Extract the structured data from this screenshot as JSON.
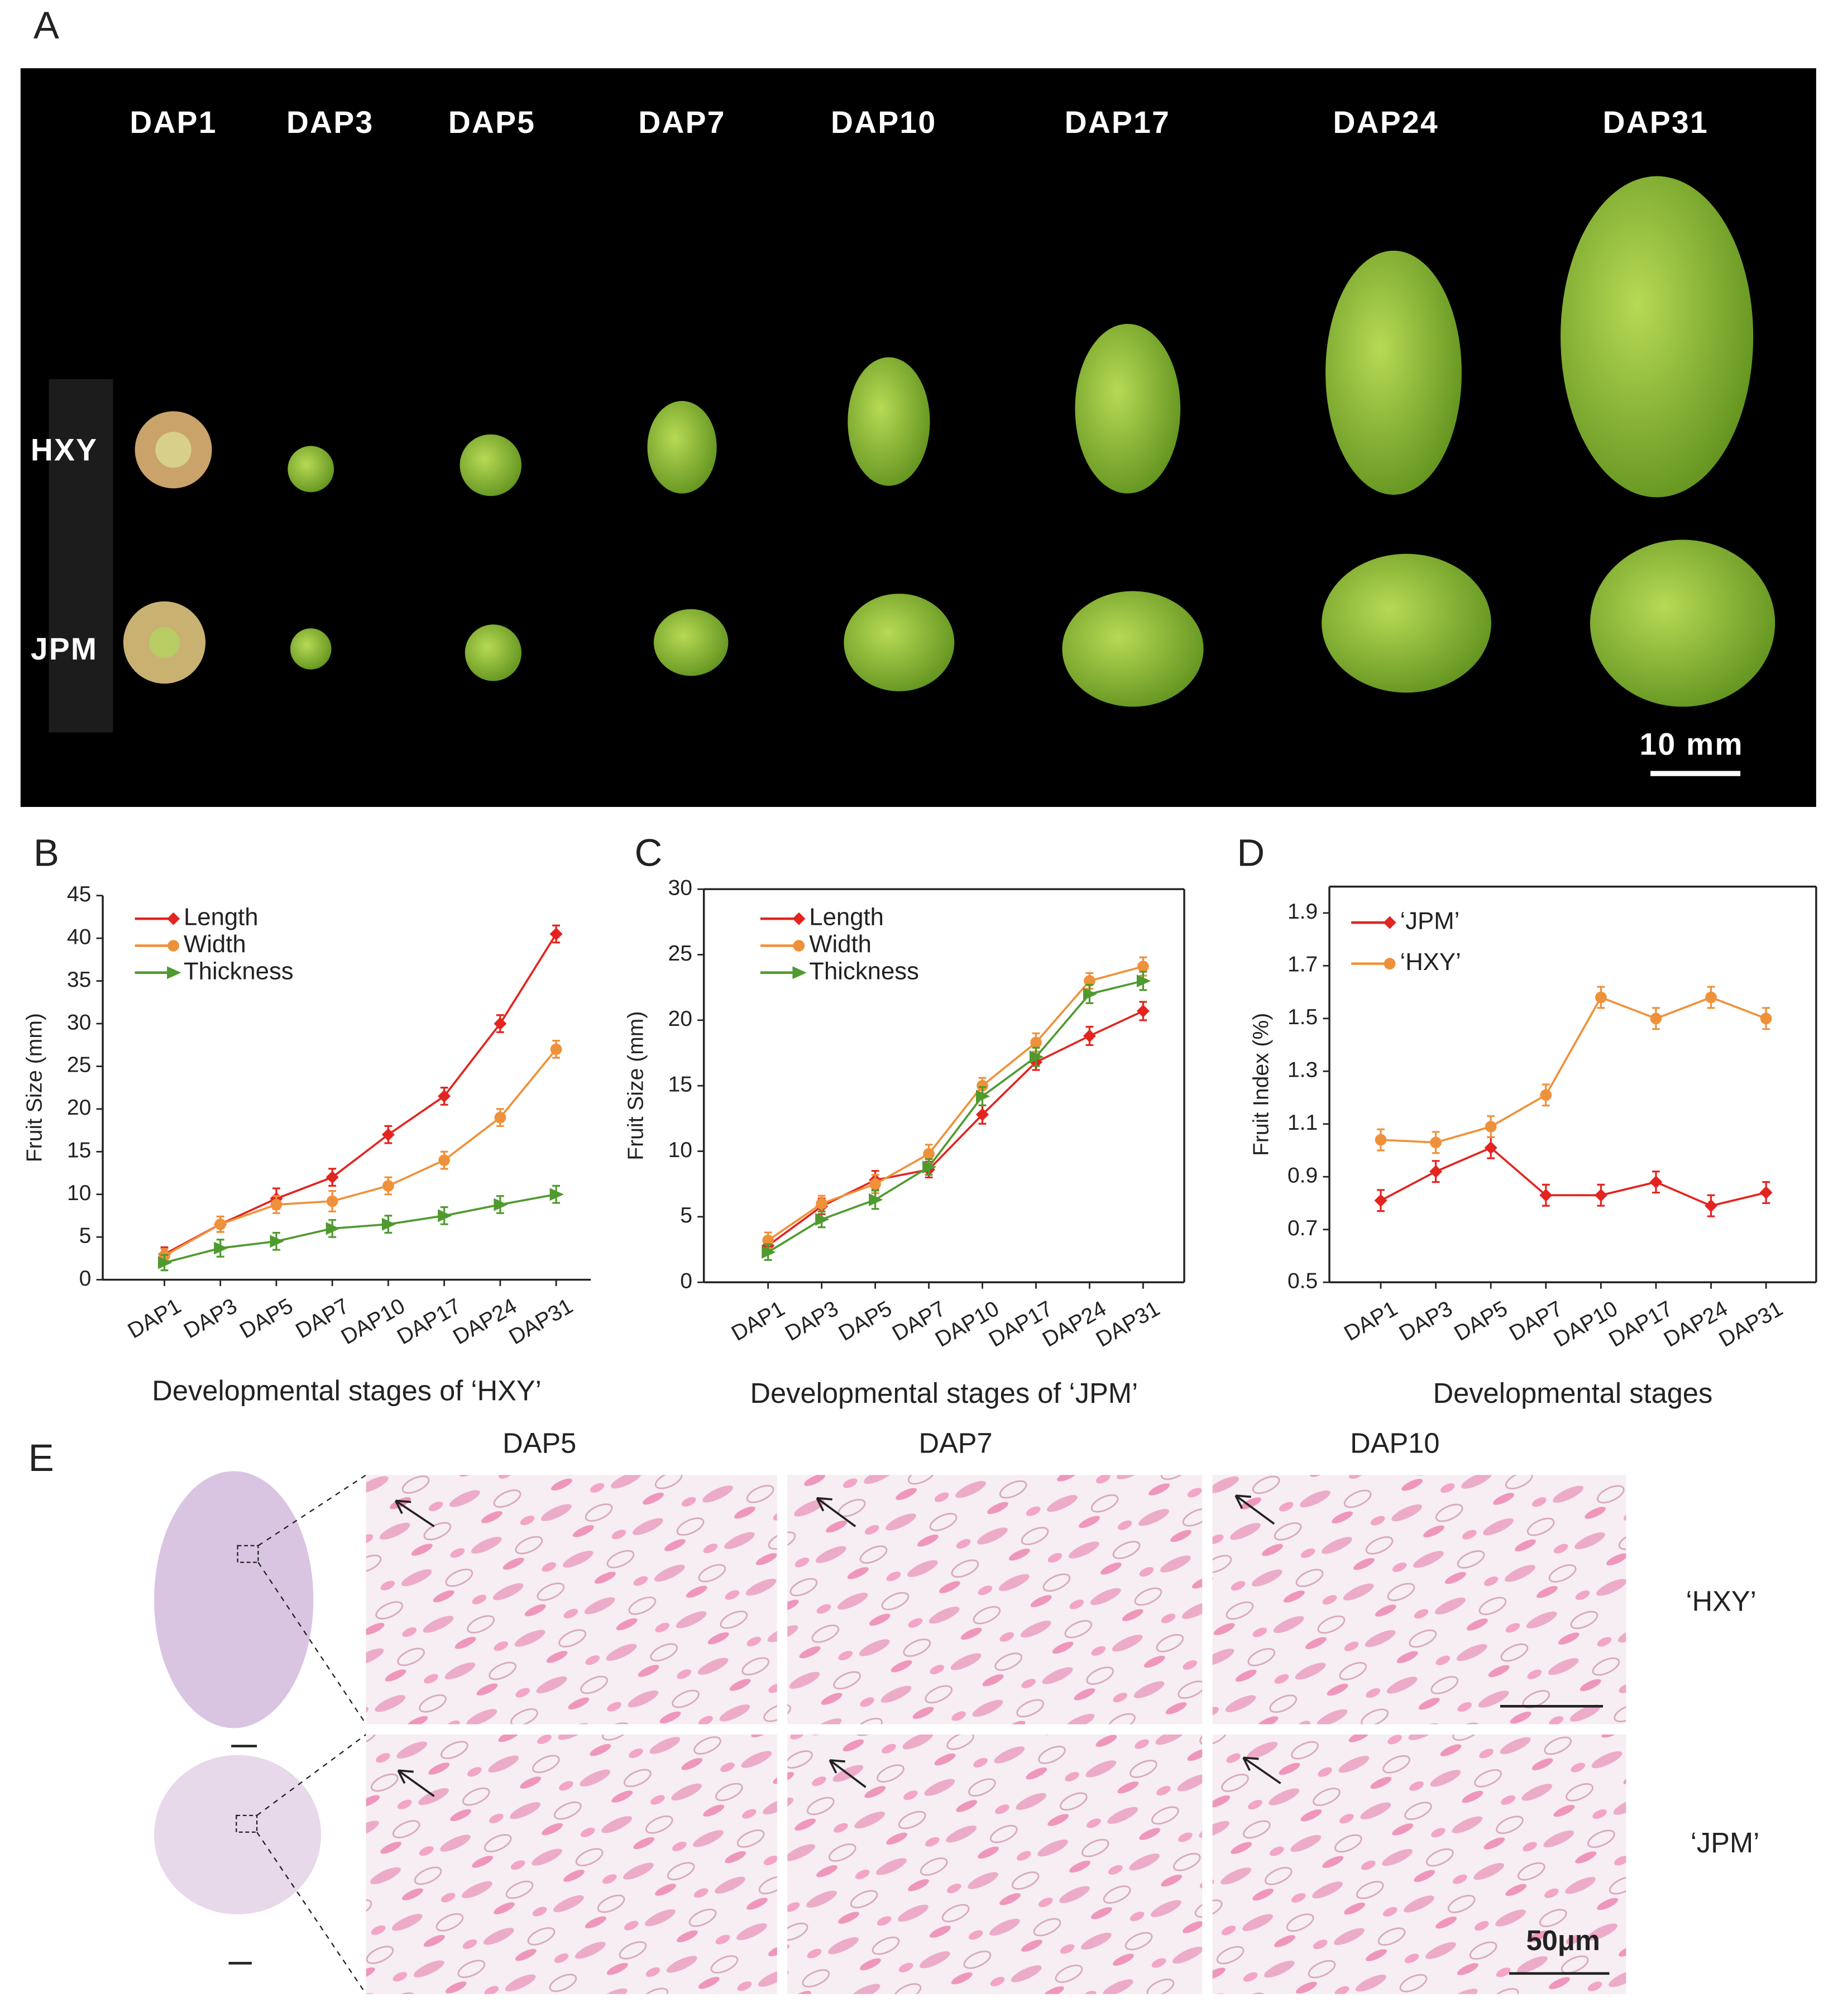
{
  "panel_labels": [
    "A",
    "B",
    "C",
    "D",
    "E"
  ],
  "panel_a": {
    "stages": [
      "DAP1",
      "DAP3",
      "DAP5",
      "DAP7",
      "DAP10",
      "DAP17",
      "DAP24",
      "DAP31"
    ],
    "rows": [
      "HXY",
      "JPM"
    ],
    "scale_bar": "10 mm"
  },
  "chart_data": [
    {
      "type": "line",
      "categories": [
        "DAP1",
        "DAP3",
        "DAP5",
        "DAP7",
        "DAP10",
        "DAP17",
        "DAP24",
        "DAP31"
      ],
      "series": [
        {
          "name": "Length",
          "color": "#e3241f",
          "marker": "diamond",
          "values": [
            3,
            6.5,
            9.5,
            12,
            17,
            21.5,
            30,
            40.5
          ],
          "errors": [
            0.8,
            0.9,
            1.2,
            1,
            1,
            1,
            1,
            1
          ]
        },
        {
          "name": "Width",
          "color": "#ef913a",
          "marker": "circle",
          "values": [
            2.8,
            6.5,
            8.8,
            9.2,
            11,
            14,
            19,
            27
          ],
          "errors": [
            0.8,
            0.9,
            1,
            1.2,
            1,
            1,
            1,
            1
          ]
        },
        {
          "name": "Thickness",
          "color": "#4f9a2f",
          "marker": "triangle",
          "values": [
            2,
            3.7,
            4.5,
            6,
            6.5,
            7.5,
            8.8,
            10
          ],
          "errors": [
            0.9,
            1,
            1,
            1,
            1,
            1,
            1,
            1
          ]
        }
      ],
      "ylim": [
        0,
        45
      ],
      "yticks": [
        0,
        5,
        10,
        15,
        20,
        25,
        30,
        35,
        40,
        45
      ],
      "xlabel": "Developmental stages of ‘HXY’",
      "ylabel": "Fruit Size (mm)",
      "frame": "axes",
      "legend": "upper left"
    },
    {
      "type": "line",
      "categories": [
        "DAP1",
        "DAP3",
        "DAP5",
        "DAP7",
        "DAP10",
        "DAP17",
        "DAP24",
        "DAP31"
      ],
      "series": [
        {
          "name": "Length",
          "color": "#e3241f",
          "marker": "diamond",
          "values": [
            2.8,
            5.8,
            7.8,
            8.6,
            12.8,
            16.8,
            18.8,
            20.7
          ],
          "errors": [
            0.6,
            0.6,
            0.7,
            0.6,
            0.7,
            0.6,
            0.7,
            0.7
          ]
        },
        {
          "name": "Width",
          "color": "#ef913a",
          "marker": "circle",
          "values": [
            3.2,
            6,
            7.5,
            9.8,
            15,
            18.3,
            23,
            24.1
          ],
          "errors": [
            0.6,
            0.6,
            0.7,
            0.7,
            0.6,
            0.7,
            0.6,
            0.7
          ]
        },
        {
          "name": "Thickness",
          "color": "#4f9a2f",
          "marker": "triangle",
          "values": [
            2.3,
            4.8,
            6.3,
            8.8,
            14.2,
            17.2,
            22,
            23
          ],
          "errors": [
            0.6,
            0.6,
            0.7,
            0.6,
            0.7,
            0.7,
            0.7,
            0.7
          ]
        }
      ],
      "ylim": [
        0,
        30
      ],
      "yticks": [
        0,
        5,
        10,
        15,
        20,
        25,
        30
      ],
      "xlabel": "Developmental stages of ‘JPM’",
      "ylabel": "Fruit Size (mm)",
      "frame": "box",
      "legend": "upper left"
    },
    {
      "type": "line",
      "categories": [
        "DAP1",
        "DAP3",
        "DAP5",
        "DAP7",
        "DAP10",
        "DAP17",
        "DAP24",
        "DAP31"
      ],
      "series": [
        {
          "name": "‘JPM’",
          "color": "#e3241f",
          "marker": "diamond",
          "values": [
            0.81,
            0.92,
            1.01,
            0.83,
            0.83,
            0.88,
            0.79,
            0.84
          ],
          "errors": [
            0.04,
            0.04,
            0.04,
            0.04,
            0.04,
            0.04,
            0.04,
            0.04
          ]
        },
        {
          "name": "‘HXY’",
          "color": "#ef913a",
          "marker": "circle",
          "values": [
            1.04,
            1.03,
            1.09,
            1.21,
            1.58,
            1.5,
            1.58,
            1.5
          ],
          "errors": [
            0.04,
            0.04,
            0.04,
            0.04,
            0.04,
            0.04,
            0.04,
            0.04
          ]
        }
      ],
      "ylim": [
        0.5,
        2.0
      ],
      "yticks": [
        0.5,
        0.7,
        0.9,
        1.1,
        1.3,
        1.5,
        1.7,
        1.9
      ],
      "xlabel": "Developmental stages",
      "ylabel": "Fruit Index (%)",
      "frame": "box",
      "legend": "upper left"
    }
  ],
  "panel_e": {
    "stages": [
      "DAP5",
      "DAP7",
      "DAP10"
    ],
    "rows": [
      "‘HXY’",
      "‘JPM’"
    ],
    "scale_bar": "50μm"
  }
}
